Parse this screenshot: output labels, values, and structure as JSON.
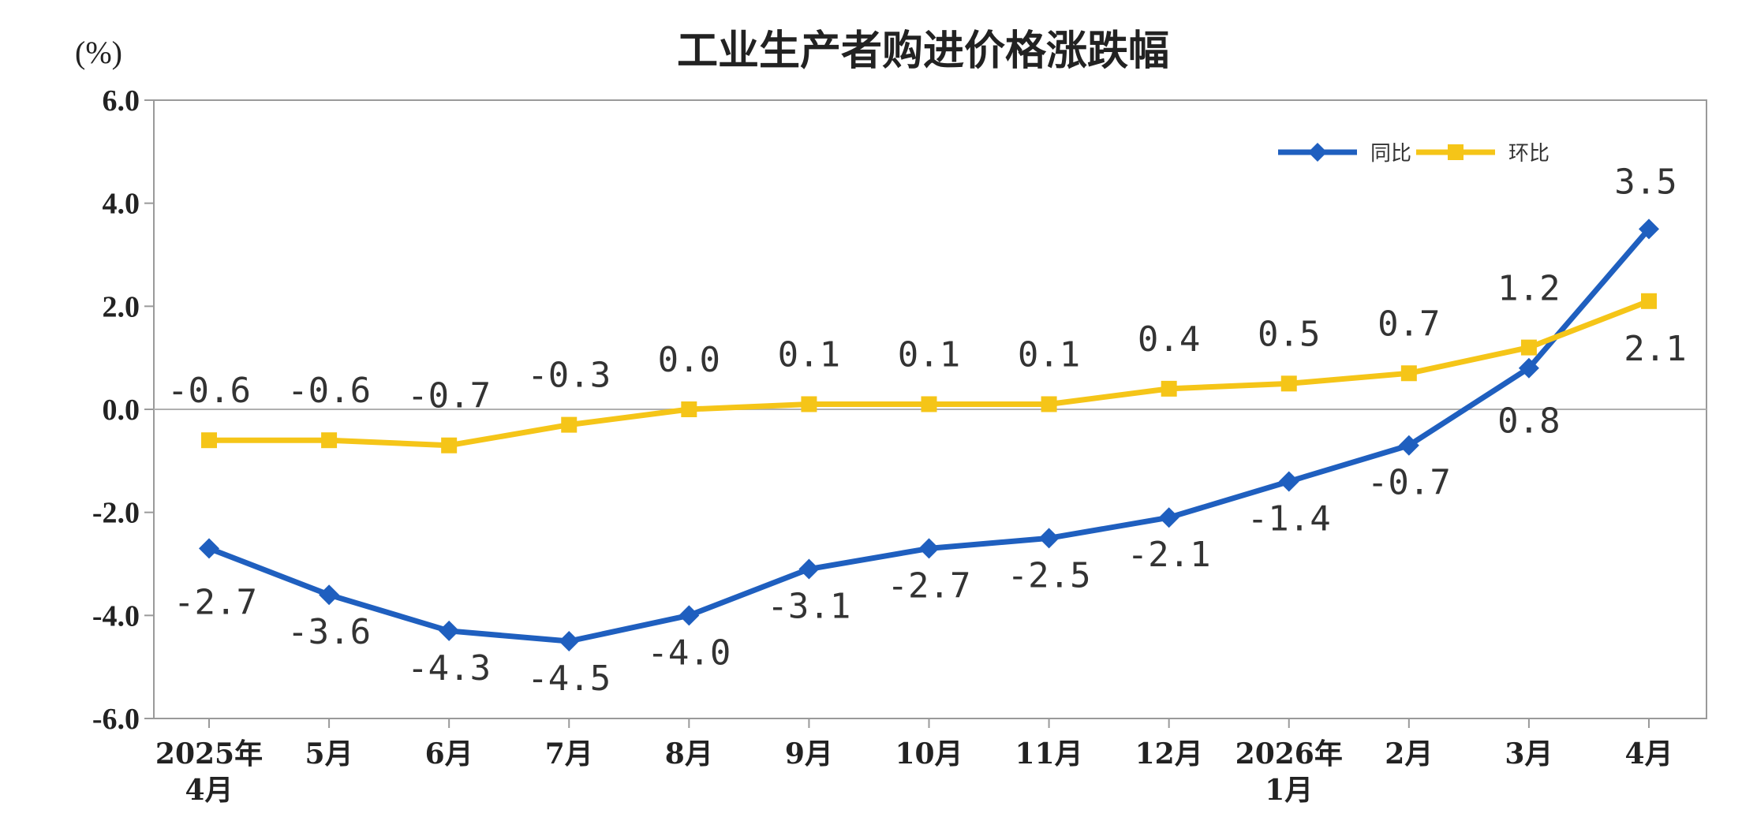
{
  "chart_data": {
    "type": "line",
    "title": "工业生产者购进价格涨跌幅",
    "unit_label": "(%)",
    "categories": [
      [
        "2025年",
        "4月"
      ],
      [
        "5月"
      ],
      [
        "6月"
      ],
      [
        "7月"
      ],
      [
        "8月"
      ],
      [
        "9月"
      ],
      [
        "10月"
      ],
      [
        "11月"
      ],
      [
        "12月"
      ],
      [
        "2026年",
        "1月"
      ],
      [
        "2月"
      ],
      [
        "3月"
      ],
      [
        "4月"
      ]
    ],
    "ylim": [
      -6.0,
      6.0
    ],
    "yticks": [
      6.0,
      4.0,
      2.0,
      0.0,
      -2.0,
      -4.0,
      -6.0
    ],
    "ytick_labels": [
      "6.0",
      "4.0",
      "2.0",
      "0.0",
      "-2.0",
      "-4.0",
      "-6.0"
    ],
    "legend_position": "top-right",
    "grid": false,
    "series": [
      {
        "name": "同比",
        "color": "#1f5fbf",
        "marker": "diamond",
        "values": [
          -2.7,
          -3.6,
          -4.3,
          -4.5,
          -4.0,
          -3.1,
          -2.7,
          -2.5,
          -2.1,
          -1.4,
          -0.7,
          0.8,
          3.5
        ],
        "labels": [
          "-2.7",
          "-3.6",
          "-4.3",
          "-4.5",
          "-4.0",
          "-3.1",
          "-2.7",
          "-2.5",
          "-2.1",
          "-1.4",
          "-0.7",
          "0.8",
          "3.5"
        ]
      },
      {
        "name": "环比",
        "color": "#f5c518",
        "marker": "square",
        "values": [
          -0.6,
          -0.6,
          -0.7,
          -0.3,
          0.0,
          0.1,
          0.1,
          0.1,
          0.4,
          0.5,
          0.7,
          1.2,
          2.1
        ],
        "labels": [
          "-0.6",
          "-0.6",
          "-0.7",
          "-0.3",
          "0.0",
          "0.1",
          "0.1",
          "0.1",
          "0.4",
          "0.5",
          "0.7",
          "1.2",
          "2.1"
        ]
      }
    ]
  }
}
